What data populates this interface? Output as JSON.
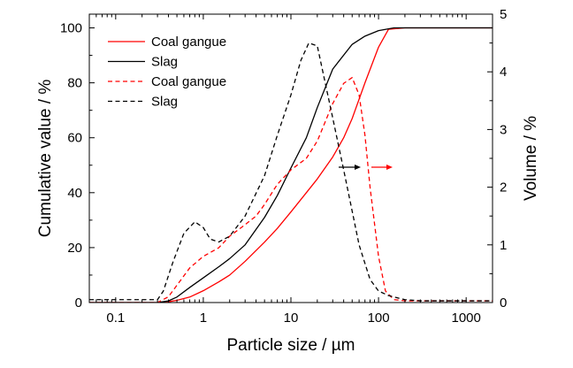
{
  "chart_data": {
    "type": "line",
    "xlabel": "Particle size / µm",
    "ylabel_left": "Cumulative value / %",
    "ylabel_right": "Volume / %",
    "x_scale": "log",
    "xlim": [
      0.05,
      2000
    ],
    "ylim_left": [
      0,
      105
    ],
    "ylim_right": [
      0,
      5
    ],
    "x_ticks": [
      0.1,
      1,
      10,
      100,
      1000
    ],
    "x_tick_labels": [
      "0.1",
      "1",
      "10",
      "100",
      "1000"
    ],
    "y_ticks_left": [
      0,
      20,
      40,
      60,
      80,
      100
    ],
    "y_tick_labels_left": [
      "0",
      "20",
      "40",
      "60",
      "80",
      "100"
    ],
    "y_ticks_right": [
      0,
      1,
      2,
      3,
      4,
      5
    ],
    "y_tick_labels_right": [
      "0",
      "1",
      "2",
      "3",
      "4",
      "5"
    ],
    "grid": false,
    "legend_position": "top-left",
    "series": [
      {
        "name": "Coal gangue",
        "axis": "left",
        "color": "#ff0000",
        "dash": "solid",
        "x": [
          0.05,
          0.3,
          0.4,
          0.5,
          0.7,
          1,
          1.5,
          2,
          3,
          5,
          7,
          10,
          15,
          20,
          30,
          40,
          50,
          70,
          100,
          130,
          200,
          500,
          1000,
          2000
        ],
        "y": [
          0,
          0,
          0.3,
          0.8,
          2,
          4.3,
          7.5,
          10,
          15,
          22,
          27,
          33,
          40,
          45,
          53,
          60,
          67,
          80,
          93,
          99.5,
          100,
          100,
          100,
          100
        ]
      },
      {
        "name": "Slag",
        "axis": "left",
        "color": "#000000",
        "dash": "solid",
        "x": [
          0.05,
          0.3,
          0.4,
          0.5,
          0.7,
          1,
          1.5,
          2,
          3,
          5,
          7,
          10,
          15,
          20,
          30,
          50,
          70,
          100,
          150,
          200,
          500,
          1000,
          2000
        ],
        "y": [
          0,
          0,
          0.6,
          2,
          5.5,
          9,
          13,
          16,
          21,
          31,
          39,
          49,
          60,
          71,
          85,
          94,
          97,
          99,
          100,
          100,
          100,
          100,
          100
        ]
      },
      {
        "name": "Coal gangue",
        "axis": "right",
        "color": "#ff0000",
        "dash": "dashed",
        "x": [
          0.05,
          0.3,
          0.4,
          0.5,
          0.7,
          1,
          1.5,
          2,
          3,
          4,
          5,
          7,
          10,
          15,
          20,
          30,
          40,
          50,
          60,
          70,
          80,
          100,
          120,
          150,
          200,
          300,
          500,
          1000,
          2000
        ],
        "y": [
          0,
          0,
          0.1,
          0.3,
          0.6,
          0.8,
          0.95,
          1.15,
          1.35,
          1.5,
          1.7,
          2.05,
          2.3,
          2.5,
          2.8,
          3.45,
          3.8,
          3.9,
          3.6,
          2.9,
          2.0,
          0.8,
          0.2,
          0.05,
          0.03,
          0.03,
          0.03,
          0.03,
          0.03
        ]
      },
      {
        "name": "Slag",
        "axis": "right",
        "color": "#000000",
        "dash": "dashed",
        "x": [
          0.05,
          0.3,
          0.35,
          0.45,
          0.6,
          0.8,
          1,
          1.2,
          1.5,
          2,
          3,
          5,
          7,
          10,
          13,
          16,
          20,
          30,
          40,
          60,
          80,
          100,
          130,
          200,
          300,
          500,
          1000,
          2000
        ],
        "y": [
          0.05,
          0.05,
          0.2,
          0.7,
          1.2,
          1.4,
          1.3,
          1.1,
          1.05,
          1.15,
          1.5,
          2.2,
          2.9,
          3.6,
          4.2,
          4.5,
          4.45,
          3.2,
          2.3,
          1.0,
          0.4,
          0.2,
          0.12,
          0.05,
          0.03,
          0.03,
          0.03,
          0.03
        ]
      }
    ]
  }
}
